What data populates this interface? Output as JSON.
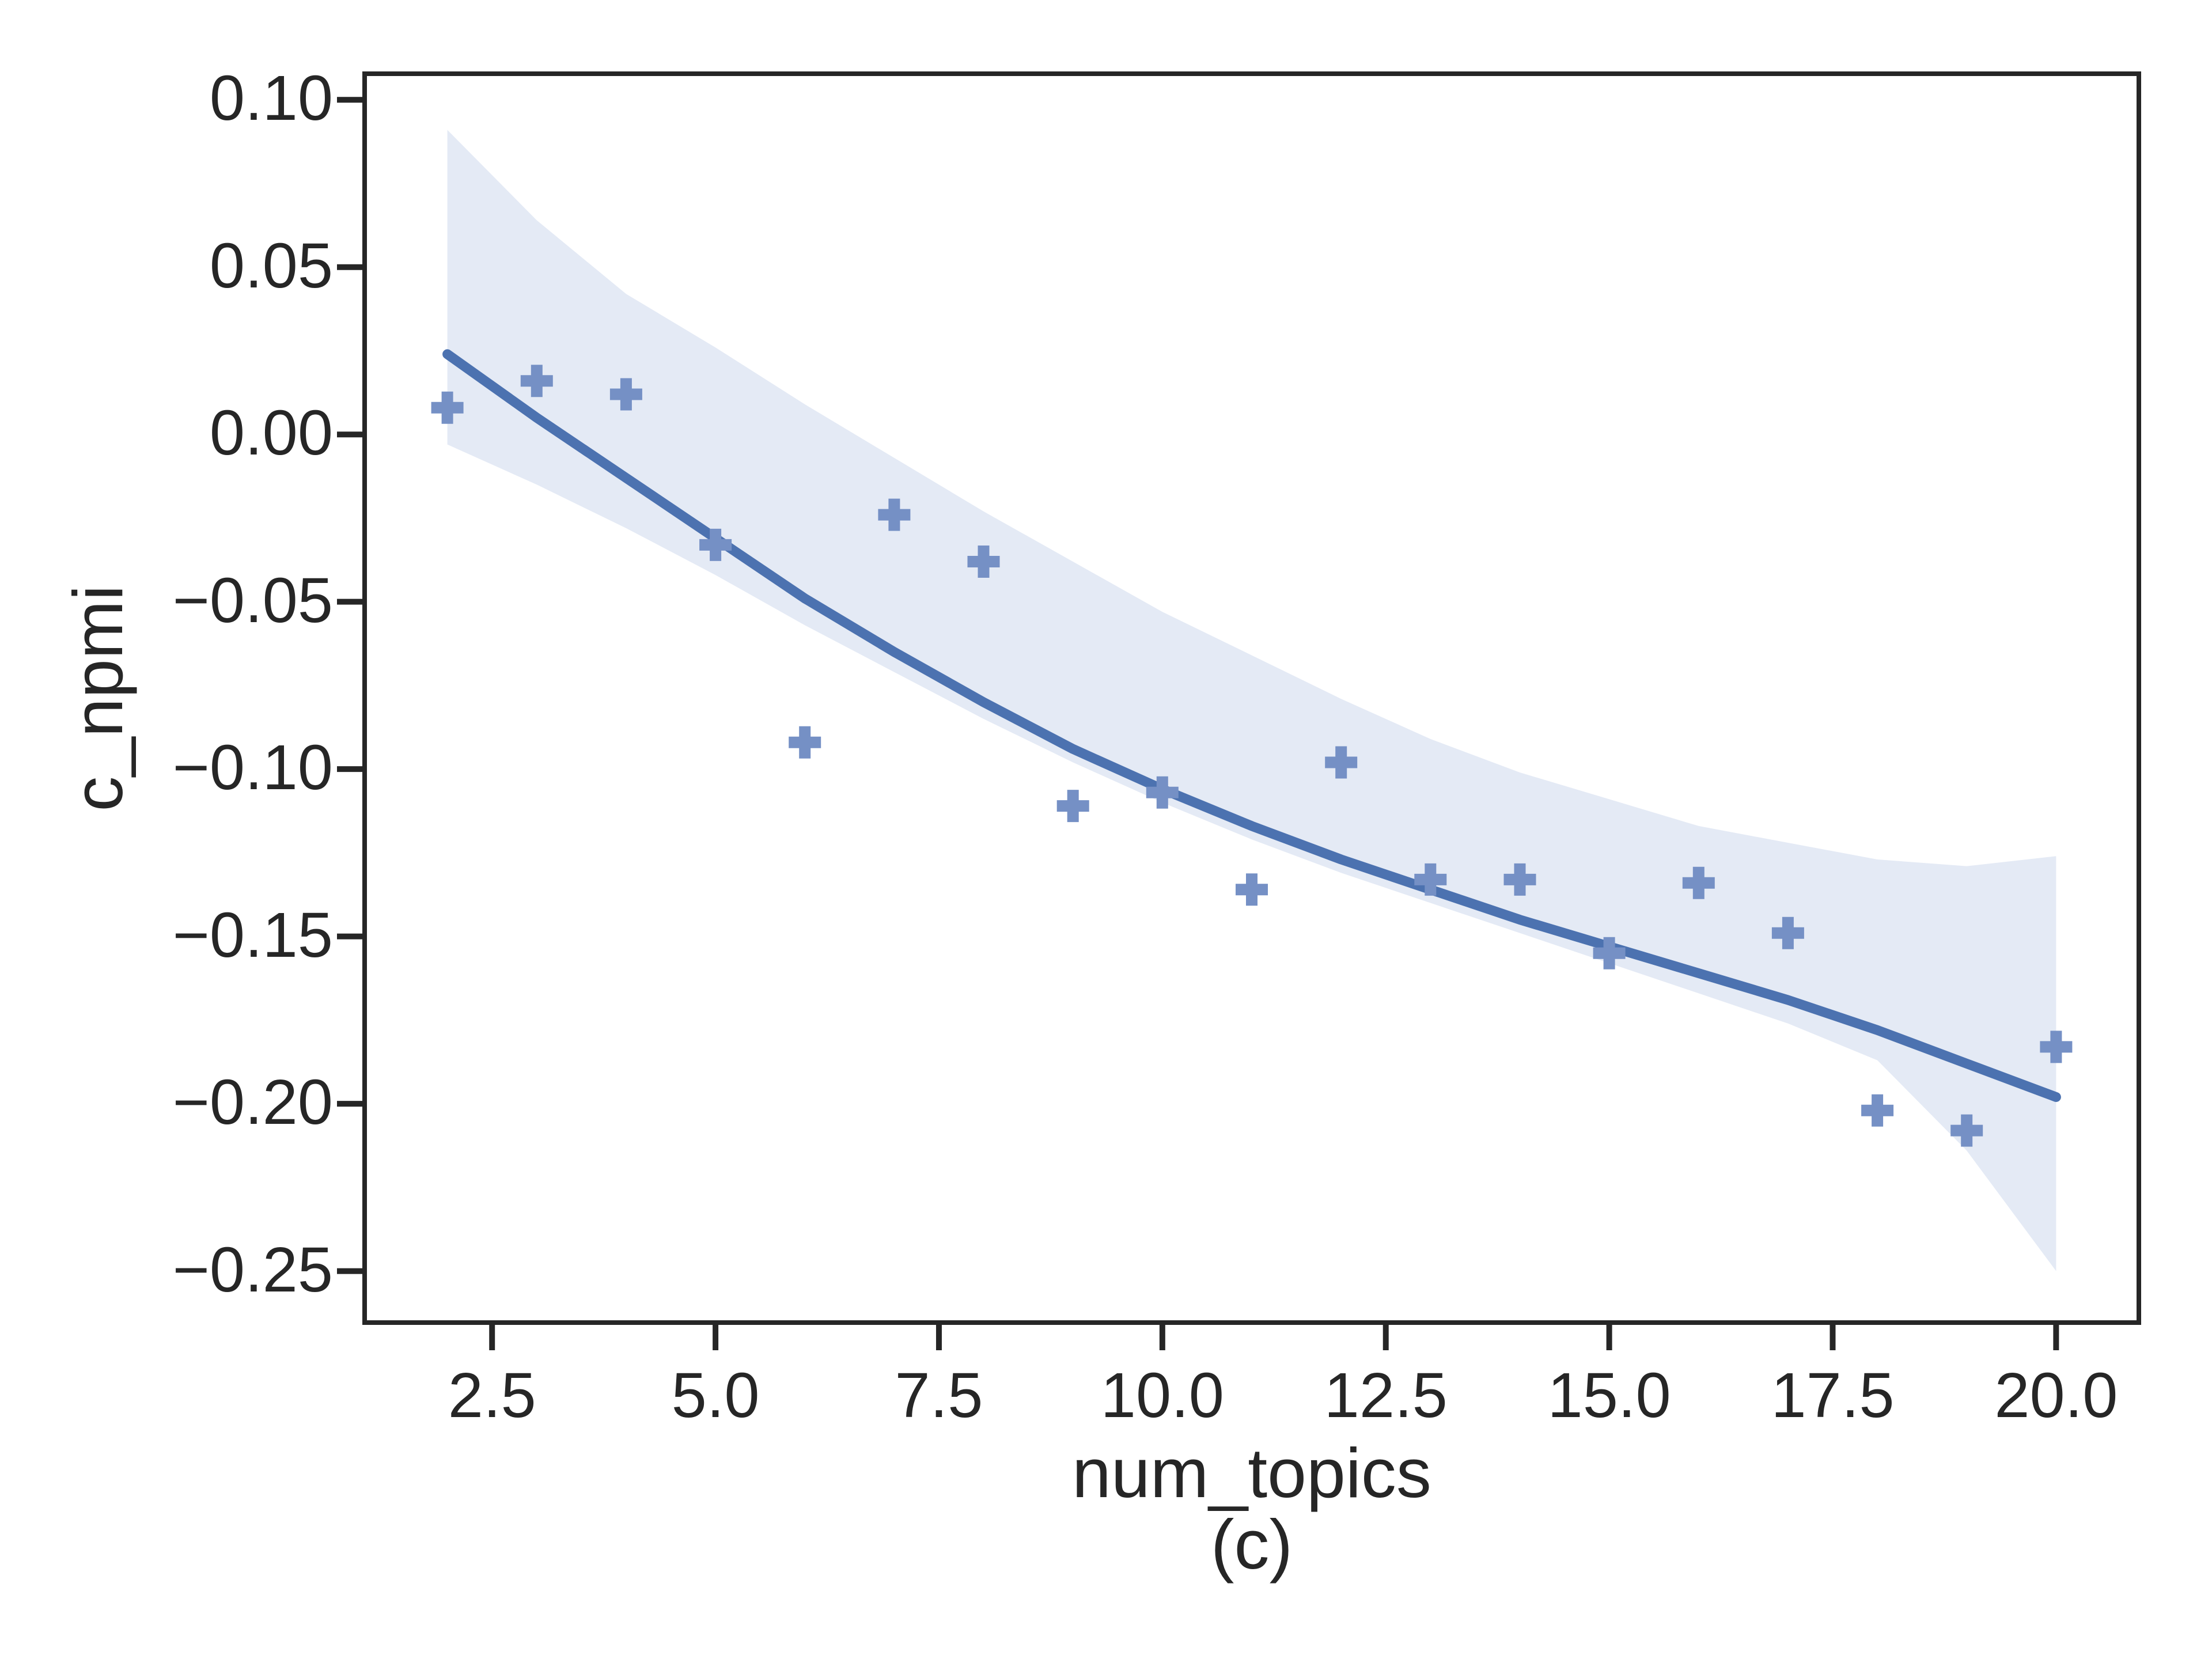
{
  "figure": {
    "caption": "(c)"
  },
  "chart_data": {
    "type": "scatter",
    "title": "",
    "xlabel": "num_topics",
    "ylabel": "c_npmi",
    "legend": null,
    "grid": false,
    "marker_style": "plus",
    "xlim": [
      1.1,
      20.9
    ],
    "ylim": [
      -0.2647,
      0.1071
    ],
    "x_ticks": [
      2.5,
      5.0,
      7.5,
      10.0,
      12.5,
      15.0,
      17.5,
      20.0
    ],
    "x_tick_labels": [
      "2.5",
      "5.0",
      "7.5",
      "10.0",
      "12.5",
      "15.0",
      "17.5",
      "20.0"
    ],
    "y_ticks": [
      0.1,
      0.05,
      0.0,
      -0.05,
      -0.1,
      -0.15,
      -0.2,
      -0.25
    ],
    "y_tick_labels": [
      "0.10",
      "0.05",
      "0.00",
      "−0.05",
      "−0.10",
      "−0.15",
      "−0.20",
      "−0.25"
    ],
    "points": {
      "x": [
        2,
        3,
        4,
        5,
        6,
        7,
        8,
        9,
        10,
        11,
        12,
        13,
        14,
        15,
        16,
        17,
        18,
        19,
        20
      ],
      "y": [
        0.008,
        0.016,
        0.012,
        -0.033,
        -0.092,
        -0.024,
        -0.038,
        -0.111,
        -0.107,
        -0.136,
        -0.098,
        -0.133,
        -0.133,
        -0.155,
        -0.134,
        -0.149,
        -0.202,
        -0.208,
        -0.183
      ]
    },
    "regression_line": {
      "x": [
        2,
        3,
        4,
        5,
        6,
        7,
        8,
        9,
        10,
        11,
        12,
        13,
        14,
        15,
        16,
        17,
        18,
        19,
        20
      ],
      "y": [
        0.024,
        0.005,
        -0.013,
        -0.031,
        -0.049,
        -0.065,
        -0.08,
        -0.094,
        -0.106,
        -0.117,
        -0.127,
        -0.136,
        -0.145,
        -0.153,
        -0.161,
        -0.169,
        -0.178,
        -0.188,
        -0.198
      ]
    },
    "ci_band": {
      "x": [
        2,
        3,
        4,
        5,
        6,
        7,
        8,
        9,
        10,
        11,
        12,
        13,
        14,
        15,
        16,
        17,
        18,
        19,
        20
      ],
      "upper": [
        0.091,
        0.064,
        0.042,
        0.026,
        0.009,
        -0.007,
        -0.023,
        -0.038,
        -0.053,
        -0.066,
        -0.079,
        -0.091,
        -0.101,
        -0.109,
        -0.117,
        -0.122,
        -0.127,
        -0.129,
        -0.126
      ],
      "lower": [
        -0.003,
        -0.015,
        -0.028,
        -0.042,
        -0.057,
        -0.071,
        -0.085,
        -0.098,
        -0.11,
        -0.121,
        -0.131,
        -0.14,
        -0.149,
        -0.158,
        -0.167,
        -0.176,
        -0.187,
        -0.214,
        -0.25
      ]
    },
    "colors": {
      "scatter": "#7590C5",
      "line": "#4C72B0",
      "band": "#E4EAF5",
      "axis": "#262626"
    }
  }
}
